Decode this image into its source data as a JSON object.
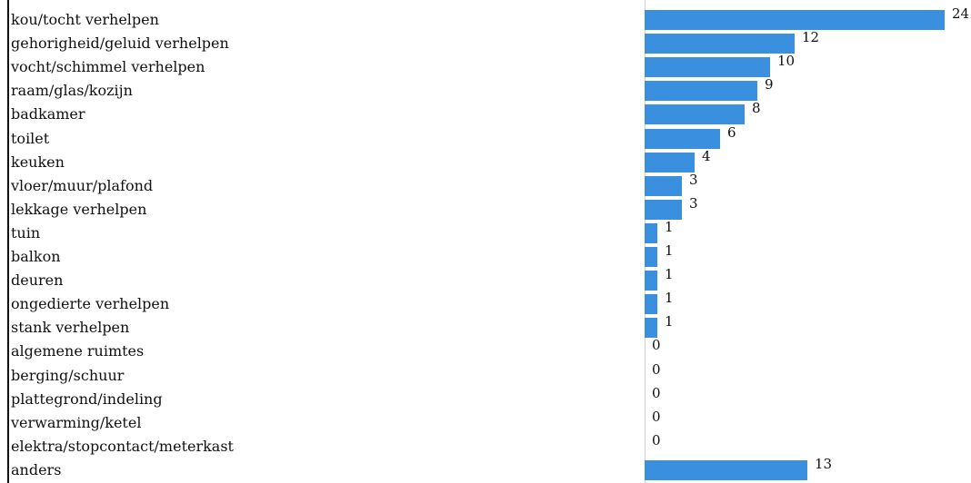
{
  "chart_data": {
    "type": "bar",
    "orientation": "horizontal",
    "categories": [
      "kou/tocht verhelpen",
      "gehorigheid/geluid verhelpen",
      "vocht/schimmel verhelpen",
      "raam/glas/kozijn",
      "badkamer",
      "toilet",
      "keuken",
      "vloer/muur/plafond",
      "lekkage verhelpen",
      "tuin",
      "balkon",
      "deuren",
      "ongedierte verhelpen",
      "stank verhelpen",
      "algemene ruimtes",
      "berging/schuur",
      "plattegrond/indeling",
      "verwarming/ketel",
      "elektra/stopcontact/meterkast",
      "anders"
    ],
    "values": [
      24,
      12,
      10,
      9,
      8,
      6,
      4,
      3,
      3,
      1,
      1,
      1,
      1,
      1,
      0,
      0,
      0,
      0,
      0,
      13
    ],
    "value_labels": [
      "24",
      "12",
      "10",
      "9",
      "8",
      "6",
      "4",
      "3",
      "3",
      "1",
      "1",
      "1",
      "1",
      "1",
      "0",
      "0",
      "0",
      "0",
      "0",
      "13"
    ],
    "bar_color": "#3a8fde",
    "xlim": [
      0,
      24
    ],
    "grid": false,
    "legend": "none"
  }
}
